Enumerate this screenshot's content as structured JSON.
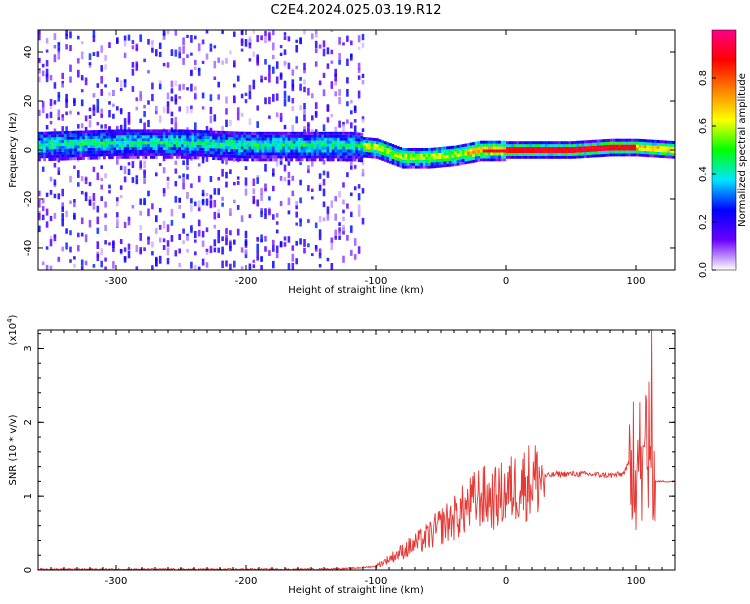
{
  "title": "C2E4.2024.025.03.19.R12",
  "chart_data": [
    {
      "type": "heatmap",
      "xlabel": "Height of straight line (km)",
      "ylabel": "Frequency (Hz)",
      "xlim": [
        -360,
        130
      ],
      "ylim": [
        -49,
        49
      ],
      "xticks": [
        -300,
        -200,
        -100,
        0,
        100
      ],
      "yticks": [
        -40,
        -20,
        0,
        20,
        40
      ],
      "colorbar": {
        "label": "Normalized spectral amplitude",
        "range": [
          0,
          1
        ],
        "ticks": [
          0.0,
          0.2,
          0.4,
          0.6,
          0.8
        ],
        "tick_labels": [
          "0.0",
          "0.2",
          "0.4",
          "0.6",
          "0.8"
        ],
        "colormap": [
          "#ffffff",
          "#6a00ff",
          "#0000ff",
          "#00e5ff",
          "#00ff00",
          "#ffff00",
          "#ff8000",
          "#ff0000",
          "#ff0088"
        ]
      },
      "band_centerline": [
        [
          -360,
          2
        ],
        [
          -300,
          3
        ],
        [
          -250,
          3
        ],
        [
          -200,
          2
        ],
        [
          -150,
          2
        ],
        [
          -120,
          2
        ],
        [
          -100,
          1
        ],
        [
          -80,
          -3
        ],
        [
          -60,
          -3
        ],
        [
          -40,
          -2
        ],
        [
          -20,
          0
        ],
        [
          0,
          0
        ],
        [
          50,
          0
        ],
        [
          80,
          1
        ],
        [
          100,
          1
        ],
        [
          130,
          0
        ]
      ],
      "noise_region_xmax": -110,
      "grid": false
    },
    {
      "type": "line",
      "xlabel": "Height of straight line (km)",
      "ylabel": "SNR (10 * v/v)",
      "y_multiplier_label": "(x10",
      "y_multiplier_exp": "4",
      "y_multiplier_close": ")",
      "xlim": [
        -360,
        130
      ],
      "ylim": [
        0,
        3.25
      ],
      "xticks": [
        -300,
        -200,
        -100,
        0,
        100
      ],
      "yticks": [
        0,
        1,
        2,
        3
      ],
      "color": "#e53935",
      "grid": false,
      "series": [
        {
          "x": [
            -360,
            -300,
            -250,
            -200,
            -150,
            -120,
            -100,
            -90,
            -80,
            -70,
            -60,
            -50,
            -40,
            -30,
            -20,
            -10,
            0,
            10,
            20,
            30,
            40,
            50,
            60,
            70,
            80,
            90,
            95,
            100,
            103,
            105,
            108,
            110,
            112,
            115,
            120,
            125,
            130
          ],
          "y": [
            0.01,
            0.01,
            0.01,
            0.01,
            0.01,
            0.02,
            0.05,
            0.15,
            0.25,
            0.35,
            0.45,
            0.6,
            0.7,
            0.85,
            1.0,
            0.95,
            1.05,
            1.15,
            1.22,
            1.27,
            1.3,
            1.3,
            1.3,
            1.29,
            1.28,
            1.3,
            1.45,
            1.2,
            1.7,
            1.0,
            2.2,
            0.6,
            1.4,
            1.2,
            1.2,
            1.2,
            1.2
          ]
        }
      ]
    }
  ]
}
